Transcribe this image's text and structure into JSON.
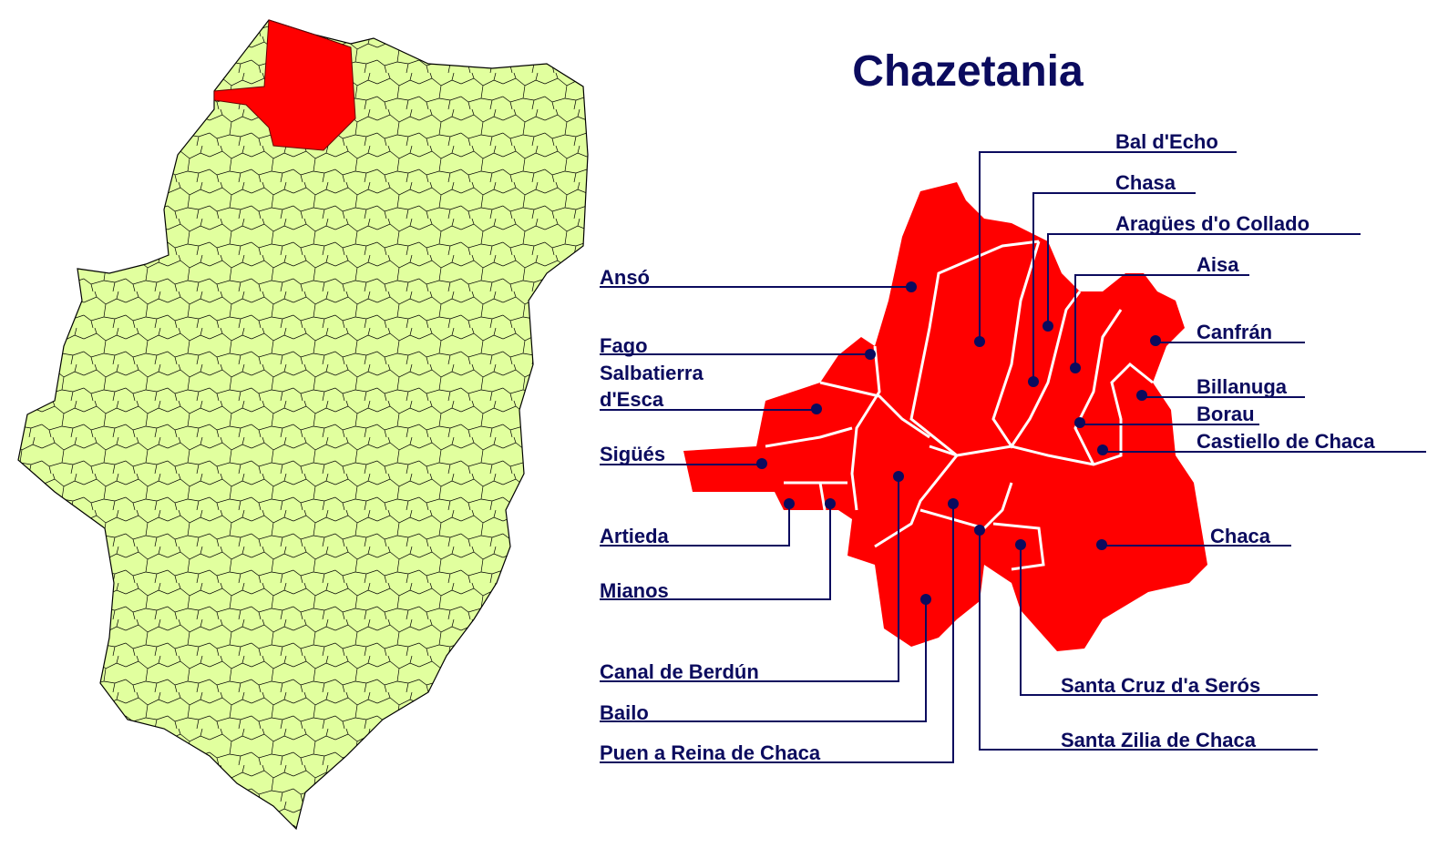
{
  "title": "Chazetania",
  "colors": {
    "region_fill": "#ff0000",
    "province_fill": "#e1ff9e",
    "label_color": "#0b0b5e",
    "boundary_on_region": "#ffffff",
    "boundary_on_province": "#000000"
  },
  "locator_map": {
    "description_shown": "province outline with highlighted comarca",
    "highlighted": true
  },
  "municipalities": [
    {
      "name": "Bal d'Echo"
    },
    {
      "name": "Chasa"
    },
    {
      "name": "Aragües d'o Collado"
    },
    {
      "name": "Aisa"
    },
    {
      "name": "Canfrán"
    },
    {
      "name": "Billanuga"
    },
    {
      "name": "Borau"
    },
    {
      "name": "Castiello de Chaca"
    },
    {
      "name": "Chaca"
    },
    {
      "name": "Santa Cruz d'a Serós"
    },
    {
      "name": "Santa Zilia de Chaca"
    },
    {
      "name": "Ansó"
    },
    {
      "name": "Fago"
    },
    {
      "name": "Salbatierra d'Esca",
      "lines": [
        "Salbatierra",
        "d'Esca"
      ]
    },
    {
      "name": "Sigüés"
    },
    {
      "name": "Artieda"
    },
    {
      "name": "Mianos"
    },
    {
      "name": "Canal de Berdún"
    },
    {
      "name": "Bailo"
    },
    {
      "name": "Puen a Reina de Chaca"
    }
  ]
}
